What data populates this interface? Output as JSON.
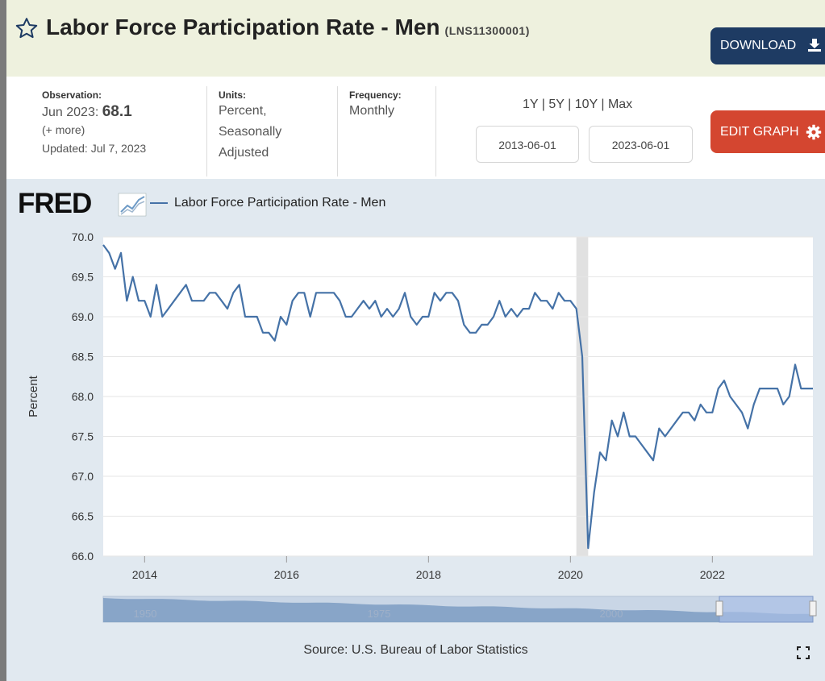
{
  "header": {
    "title": "Labor Force Participation Rate - Men",
    "series_id": "(LNS11300001)",
    "download_label": "DOWNLOAD"
  },
  "info": {
    "observation_label": "Observation:",
    "observation_date": "Jun 2023:",
    "observation_value": "68.1",
    "more_link": "(+ more)",
    "updated": "Updated: Jul 7, 2023",
    "units_label": "Units:",
    "units_line1": "Percent,",
    "units_line2": "Seasonally",
    "units_line3": "Adjusted",
    "frequency_label": "Frequency:",
    "frequency_value": "Monthly",
    "range_1y": "1Y",
    "range_5y": "5Y",
    "range_10y": "10Y",
    "range_max": "Max",
    "range_sep": "|",
    "start_date": "2013-06-01",
    "end_date": "2023-06-01",
    "edit_label": "EDIT GRAPH"
  },
  "logo_text": "FRED",
  "source": "Source: U.S. Bureau of Labor Statistics",
  "colors": {
    "series": "#4572a7",
    "recession": "#e1e1e1",
    "download": "#1e3b63",
    "edit": "#d44630",
    "header_bg": "#eef1de",
    "chart_bg": "#e1e9f0"
  },
  "chart_data": {
    "type": "line",
    "title": "",
    "legend": [
      "Labor Force Participation Rate - Men"
    ],
    "ylabel": "Percent",
    "xlabel": "",
    "ylim": [
      66.0,
      70.0
    ],
    "yticks": [
      "70.0",
      "69.5",
      "69.0",
      "68.5",
      "68.0",
      "67.5",
      "67.0",
      "66.5",
      "66.0"
    ],
    "xticks": [
      "2014",
      "2016",
      "2018",
      "2020",
      "2022"
    ],
    "xlim": [
      "2013-06",
      "2023-06"
    ],
    "recession": [
      "2020-02",
      "2020-04"
    ],
    "grid": true,
    "series": [
      {
        "name": "Labor Force Participation Rate - Men",
        "start": "2013-06",
        "frequency": "monthly",
        "values": [
          69.9,
          69.8,
          69.6,
          69.8,
          69.2,
          69.5,
          69.2,
          69.2,
          69.0,
          69.4,
          69.0,
          69.1,
          69.2,
          69.3,
          69.4,
          69.2,
          69.2,
          69.2,
          69.3,
          69.3,
          69.2,
          69.1,
          69.3,
          69.4,
          69.0,
          69.0,
          69.0,
          68.8,
          68.8,
          68.7,
          69.0,
          68.9,
          69.2,
          69.3,
          69.3,
          69.0,
          69.3,
          69.3,
          69.3,
          69.3,
          69.2,
          69.0,
          69.0,
          69.1,
          69.2,
          69.1,
          69.2,
          69.0,
          69.1,
          69.0,
          69.1,
          69.3,
          69.0,
          68.9,
          69.0,
          69.0,
          69.3,
          69.2,
          69.3,
          69.3,
          69.2,
          68.9,
          68.8,
          68.8,
          68.9,
          68.9,
          69.0,
          69.2,
          69.0,
          69.1,
          69.0,
          69.1,
          69.1,
          69.3,
          69.2,
          69.2,
          69.1,
          69.3,
          69.2,
          69.2,
          69.1,
          68.5,
          66.1,
          66.8,
          67.3,
          67.2,
          67.7,
          67.5,
          67.8,
          67.5,
          67.5,
          67.4,
          67.3,
          67.2,
          67.6,
          67.5,
          67.6,
          67.7,
          67.8,
          67.8,
          67.7,
          67.9,
          67.8,
          67.8,
          68.1,
          68.2,
          68.0,
          67.9,
          67.8,
          67.6,
          67.9,
          68.1,
          68.1,
          68.1,
          68.1,
          67.9,
          68.0,
          68.4,
          68.1,
          68.1,
          68.1
        ]
      }
    ],
    "navigator": {
      "labels": [
        "1950",
        "1975",
        "2000"
      ]
    }
  }
}
